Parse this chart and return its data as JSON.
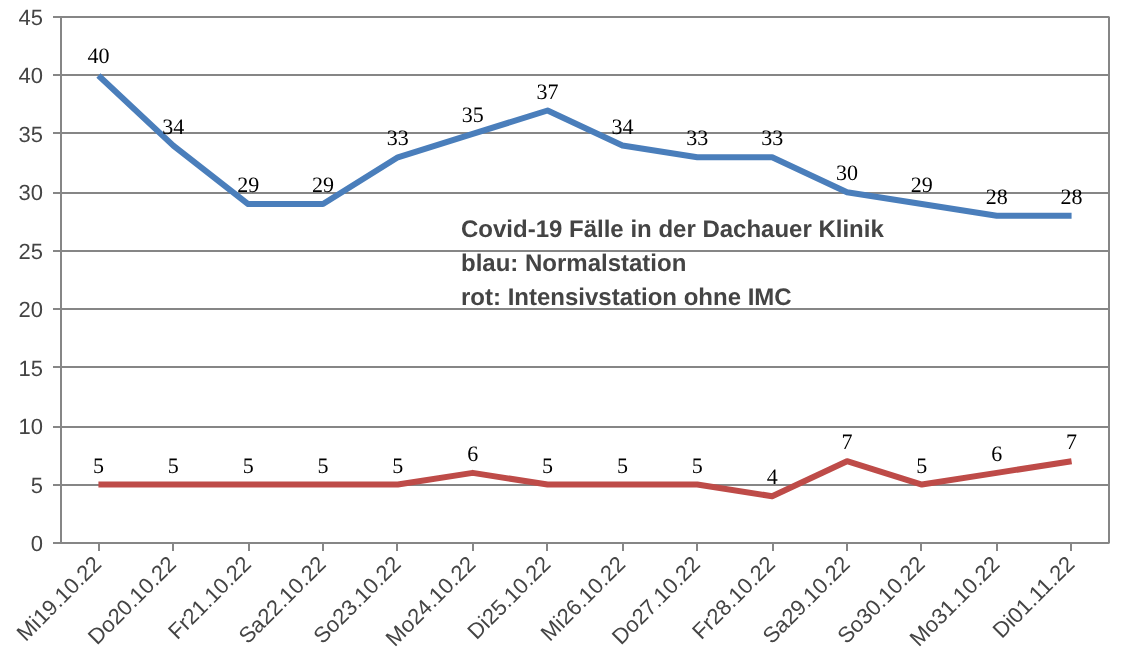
{
  "chart_data": {
    "type": "line",
    "categories": [
      "Mi19.10.22",
      "Do20.10.22",
      "Fr21.10.22",
      "Sa22.10.22",
      "So23.10.22",
      "Mo24.10.22",
      "Di25.10.22",
      "Mi26.10.22",
      "Do27.10.22",
      "Fr28.10.22",
      "Sa29.10.22",
      "So30.10.22",
      "Mo31.10.22",
      "Di01.11.22"
    ],
    "series": [
      {
        "color": "#4a7ebb",
        "values": [
          40,
          34,
          29,
          29,
          33,
          35,
          37,
          34,
          33,
          33,
          30,
          29,
          28,
          28
        ]
      },
      {
        "color": "#be4b48",
        "values": [
          5,
          5,
          5,
          5,
          5,
          6,
          5,
          5,
          5,
          4,
          7,
          5,
          6,
          7
        ]
      }
    ],
    "ylim": [
      0,
      45
    ],
    "yticks": [
      0,
      5,
      10,
      15,
      20,
      25,
      30,
      35,
      40,
      45
    ],
    "grid": "y",
    "data_labels": true,
    "marker": "none",
    "line_style": "solid",
    "annotations": [
      "Covid-19 Fälle in der Dachauer Klinik",
      "blau: Normalstation",
      "rot: Intensivstation ohne IMC"
    ]
  }
}
